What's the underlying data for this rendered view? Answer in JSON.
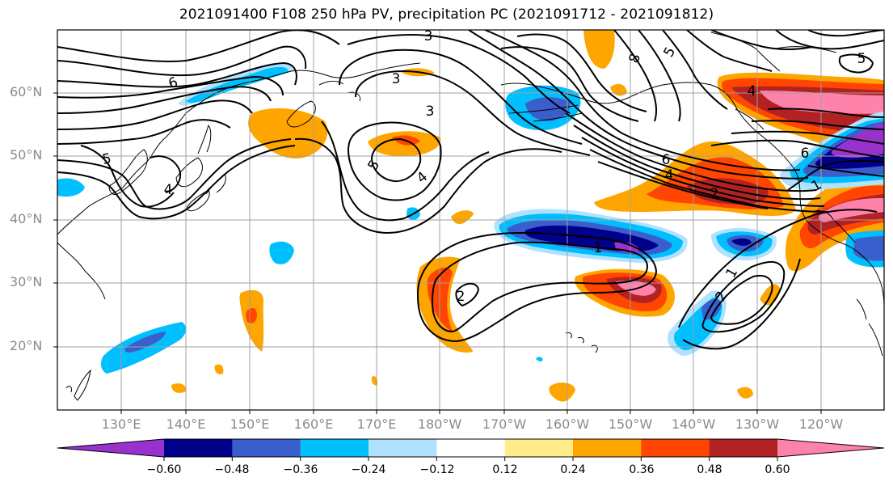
{
  "title": "2021091400 F108 250 hPa PV, precipitation PC (2021091712 - 2021091812)",
  "lat_labels": [
    "60°N",
    "50°N",
    "40°N",
    "30°N",
    "20°N"
  ],
  "lon_labels": [
    "130°E",
    "140°E",
    "150°E",
    "160°E",
    "170°E",
    "180°W",
    "170°W",
    "160°W",
    "150°W",
    "140°W",
    "130°W",
    "120°W"
  ],
  "contour_labels": [
    "6",
    "5",
    "4",
    "3",
    "8",
    "5",
    "3",
    "5",
    "4",
    "3",
    "6",
    "4",
    "2",
    "1",
    "1",
    "2",
    "4",
    "5",
    "6",
    "1",
    "2"
  ],
  "colorbar": {
    "ticks": [
      "−0.60",
      "−0.48",
      "−0.36",
      "−0.24",
      "−0.12",
      "0.12",
      "0.24",
      "0.36",
      "0.48",
      "0.60"
    ],
    "colors": [
      "#9932cc",
      "#00008b",
      "#3a5fcd",
      "#00bfff",
      "#b0e2ff",
      "#ffffff",
      "#ffec8b",
      "#ffa500",
      "#ff4500",
      "#b22222",
      "#ff82ab",
      "#ff82ab"
    ]
  }
}
